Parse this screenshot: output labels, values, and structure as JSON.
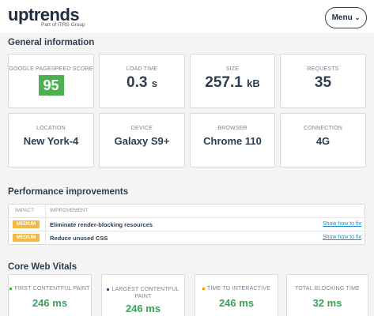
{
  "header": {
    "logo": "uptrends",
    "logo_sub": "Part of ITRS Group",
    "menu_label": "Menu"
  },
  "general": {
    "title": "General information",
    "cards": [
      {
        "label": "GOOGLE PAGESPEED SCORE",
        "value": "95"
      },
      {
        "label": "LOAD TIME",
        "value": "0.3",
        "unit": "s"
      },
      {
        "label": "SIZE",
        "value": "257.1",
        "unit": "kB"
      },
      {
        "label": "REQUESTS",
        "value": "35"
      },
      {
        "label": "LOCATION",
        "value": "New York-4"
      },
      {
        "label": "DEVICE",
        "value": "Galaxy S9+"
      },
      {
        "label": "BROWSER",
        "value": "Chrome 110"
      },
      {
        "label": "CONNECTION",
        "value": "4G"
      }
    ]
  },
  "performance": {
    "title": "Performance improvements",
    "columns": [
      "IMPACT",
      "IMPROVEMENT"
    ],
    "rows": [
      {
        "impact": "MEDIUM",
        "title": "Eliminate render-blocking resources",
        "link": "Show how to fix"
      },
      {
        "impact": "MEDIUM",
        "title": "Reduce unused CSS",
        "link": "Show how to fix"
      }
    ]
  },
  "cwv": {
    "title": "Core Web Vitals",
    "cards": [
      {
        "label": "FIRST CONTENTFUL PAINT",
        "value": "246 ms",
        "dot_color": "#4caf50"
      },
      {
        "label_line1": "LARGEST CONTENTFUL",
        "label_line2": "PAINT",
        "value": "246 ms",
        "dot_color": "#3f51b5"
      },
      {
        "label": "TIME TO INTERACTIVE",
        "value": "246 ms",
        "dot_color": "#f39c12"
      },
      {
        "label": "TOTAL BLOCKING TIME",
        "value": "32 ms"
      }
    ]
  },
  "colors": {
    "score_green": "#4caf50",
    "badge_medium": "#f5b942",
    "link_blue": "#1e8bc3",
    "good_green": "#3aa35a"
  }
}
